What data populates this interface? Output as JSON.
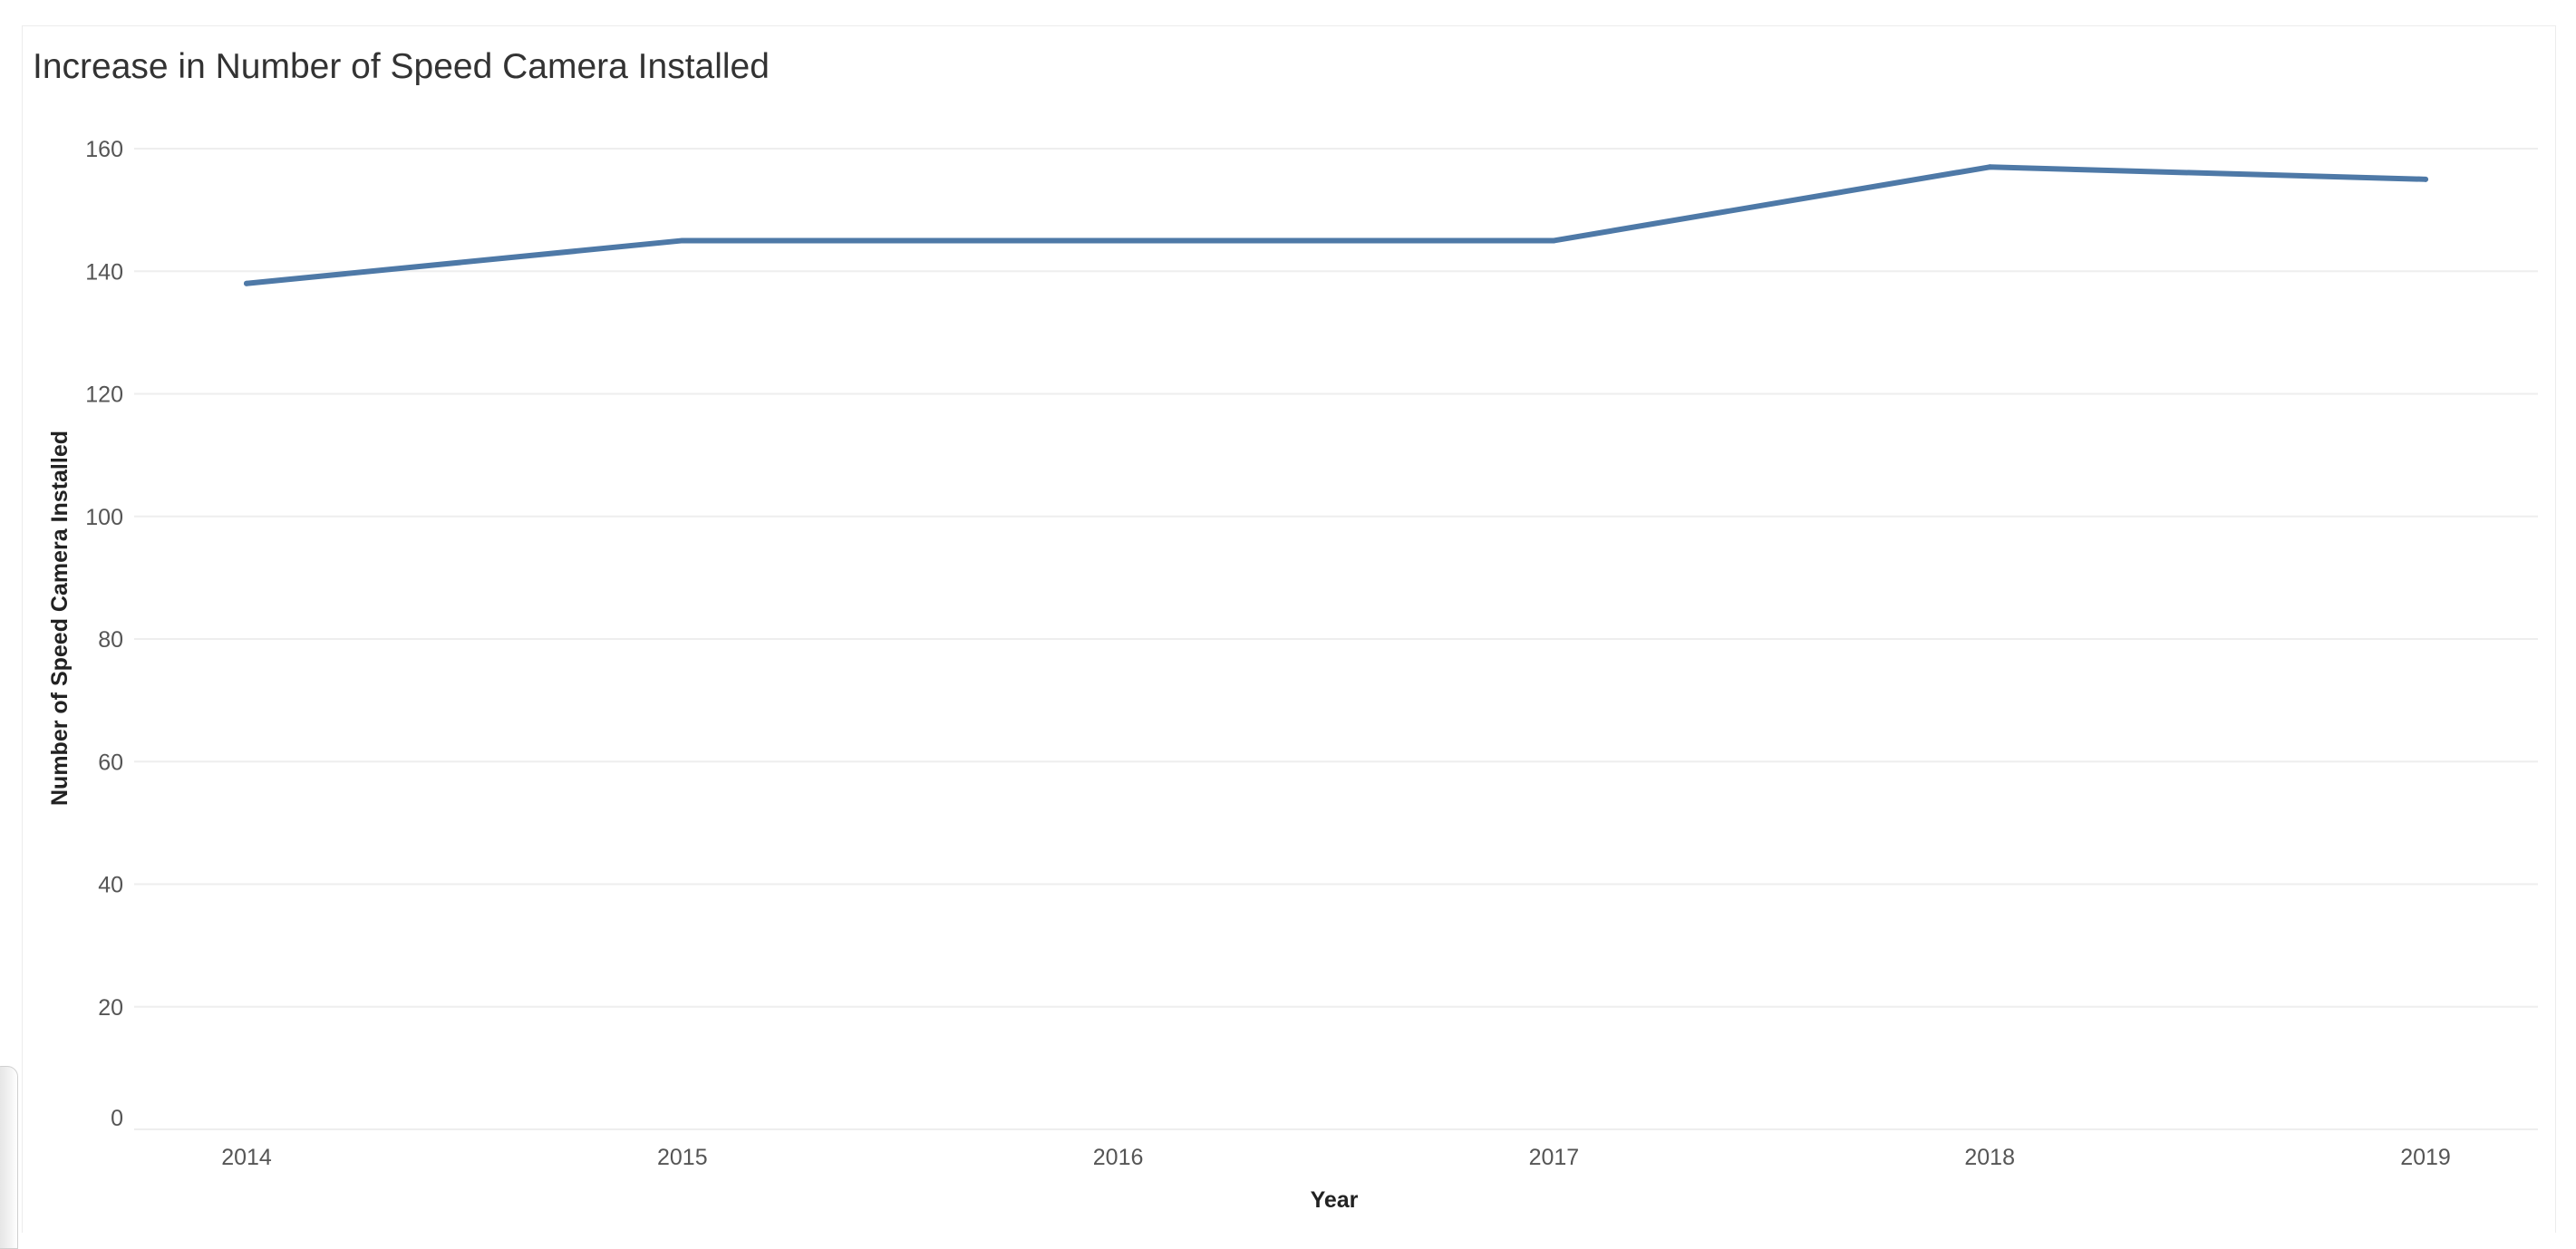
{
  "chart_data": {
    "type": "line",
    "title": "Increase in Number of Speed Camera Installed",
    "xlabel": "Year",
    "ylabel": "Number of Speed Camera Installed",
    "categories": [
      "2014",
      "2015",
      "2016",
      "2017",
      "2018",
      "2019"
    ],
    "series": [
      {
        "values": [
          138,
          145,
          145,
          145,
          157,
          155
        ]
      }
    ],
    "y_ticks": [
      "0",
      "20",
      "40",
      "60",
      "80",
      "100",
      "120",
      "140",
      "160"
    ],
    "ylim": [
      0,
      160
    ],
    "grid": true,
    "line_color": "#4e79a7",
    "grid_color": "#eeeeee"
  }
}
